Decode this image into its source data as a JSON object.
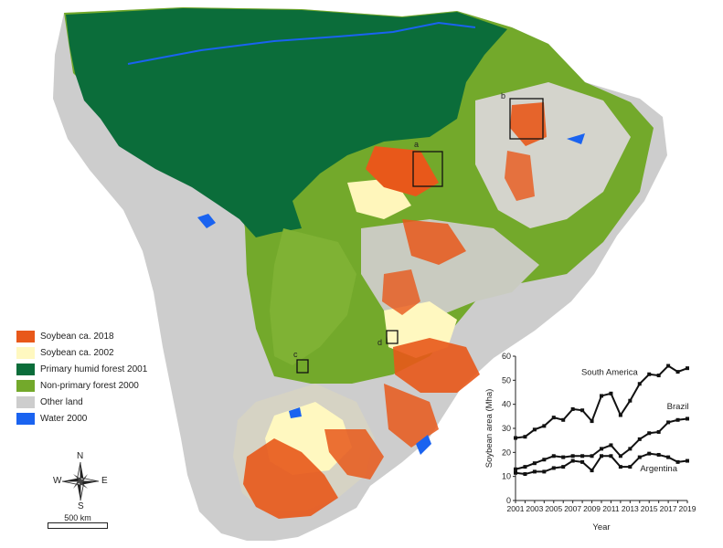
{
  "legend": {
    "items": [
      {
        "label": "Soybean ca. 2018",
        "color": "#e8581a"
      },
      {
        "label": "Soybean ca. 2002",
        "color": "#fff8c0"
      },
      {
        "label": "Primary humid forest 2001",
        "color": "#0b6d3a"
      },
      {
        "label": "Non-primary forest 2000",
        "color": "#73a92b"
      },
      {
        "label": "Other land",
        "color": "#cdcdcd"
      },
      {
        "label": "Water 2000",
        "color": "#1a63f0"
      }
    ]
  },
  "compass": {
    "n": "N",
    "s": "S",
    "e": "E",
    "w": "W"
  },
  "scale": {
    "label": "500 km"
  },
  "study_areas": {
    "a": "a",
    "b": "b",
    "c": "c",
    "d": "d"
  },
  "chart_data": {
    "type": "line",
    "xlabel": "Year",
    "ylabel": "Soybean area (Mha)",
    "ylim": [
      0,
      60
    ],
    "xlim": [
      2001,
      2019
    ],
    "yticks": [
      0,
      10,
      20,
      30,
      40,
      50,
      60
    ],
    "xticks": [
      2001,
      2003,
      2005,
      2007,
      2009,
      2011,
      2013,
      2015,
      2017,
      2019
    ],
    "x": [
      2001,
      2002,
      2003,
      2004,
      2005,
      2006,
      2007,
      2008,
      2009,
      2010,
      2011,
      2012,
      2013,
      2014,
      2015,
      2016,
      2017,
      2018,
      2019
    ],
    "series": [
      {
        "name": "South America",
        "values": [
          26,
          26.5,
          29.5,
          31,
          34.5,
          33.5,
          38,
          37.5,
          33,
          43.5,
          44.5,
          35.5,
          41.5,
          48.5,
          52.5,
          52,
          56,
          53.5,
          55
        ]
      },
      {
        "name": "Brazil",
        "values": [
          13,
          14,
          15.5,
          17,
          18.5,
          18,
          18.5,
          18.5,
          18.5,
          21.5,
          23,
          18.5,
          21.5,
          25.5,
          28,
          28.5,
          32.5,
          33.5,
          34
        ]
      },
      {
        "name": "Argentina",
        "values": [
          11.5,
          11,
          12,
          12,
          13.5,
          14,
          16.5,
          16,
          12.5,
          18.5,
          18.5,
          14,
          14,
          18,
          19.5,
          19,
          18,
          16,
          16.5
        ]
      }
    ]
  }
}
